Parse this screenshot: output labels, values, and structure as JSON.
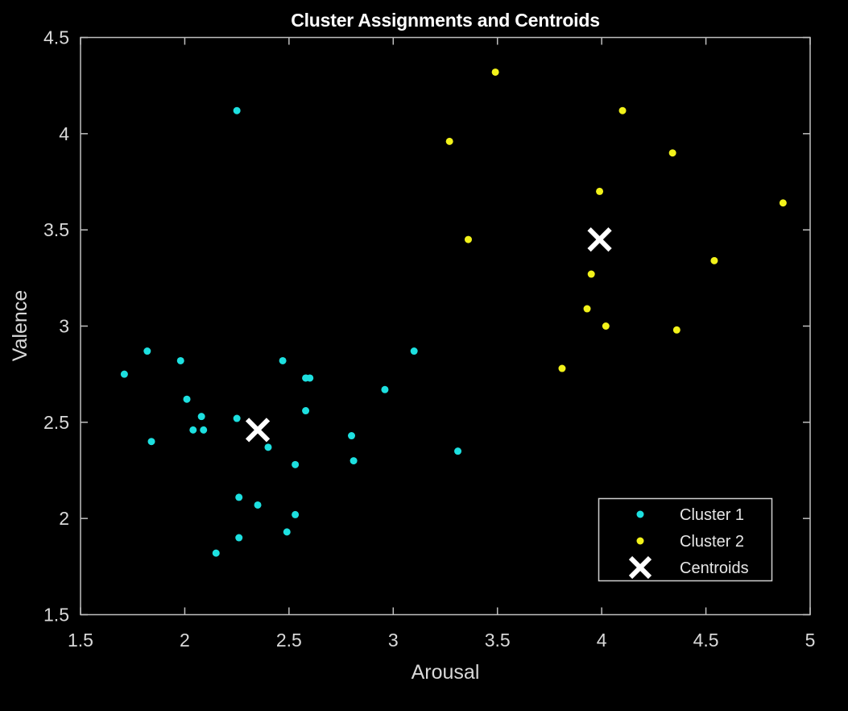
{
  "chart_data": {
    "type": "scatter",
    "title": "Cluster Assignments and Centroids",
    "xlabel": "Arousal",
    "ylabel": "Valence",
    "xlim": [
      1.5,
      5
    ],
    "ylim": [
      1.5,
      4.5
    ],
    "xticks": [
      "1.5",
      "2",
      "2.5",
      "3",
      "3.5",
      "4",
      "4.5",
      "5"
    ],
    "yticks": [
      "1.5",
      "2",
      "2.5",
      "3",
      "3.5",
      "4",
      "4.5"
    ],
    "grid": false,
    "legend_position": "lower right",
    "series": [
      {
        "name": "Cluster 1",
        "color": "#1de0e0",
        "marker": "dot",
        "points": [
          [
            1.71,
            2.75
          ],
          [
            1.82,
            2.87
          ],
          [
            1.84,
            2.4
          ],
          [
            1.98,
            2.82
          ],
          [
            2.01,
            2.62
          ],
          [
            2.08,
            2.53
          ],
          [
            2.04,
            2.46
          ],
          [
            2.09,
            2.46
          ],
          [
            2.25,
            4.12
          ],
          [
            2.25,
            2.52
          ],
          [
            2.26,
            2.11
          ],
          [
            2.26,
            1.9
          ],
          [
            2.15,
            1.82
          ],
          [
            2.35,
            2.07
          ],
          [
            2.4,
            2.37
          ],
          [
            2.47,
            2.82
          ],
          [
            2.49,
            1.93
          ],
          [
            2.53,
            2.02
          ],
          [
            2.53,
            2.28
          ],
          [
            2.58,
            2.73
          ],
          [
            2.6,
            2.73
          ],
          [
            2.58,
            2.56
          ],
          [
            2.8,
            2.43
          ],
          [
            2.81,
            2.3
          ],
          [
            2.96,
            2.67
          ],
          [
            3.1,
            2.87
          ],
          [
            3.31,
            2.35
          ]
        ]
      },
      {
        "name": "Cluster 2",
        "color": "#f2f21a",
        "marker": "dot",
        "points": [
          [
            3.27,
            3.96
          ],
          [
            3.36,
            3.45
          ],
          [
            3.49,
            4.32
          ],
          [
            3.81,
            2.78
          ],
          [
            3.93,
            3.09
          ],
          [
            3.95,
            3.27
          ],
          [
            3.99,
            3.7
          ],
          [
            4.02,
            3.0
          ],
          [
            4.1,
            4.12
          ],
          [
            4.34,
            3.9
          ],
          [
            4.36,
            2.98
          ],
          [
            4.54,
            3.34
          ],
          [
            4.87,
            3.64
          ]
        ]
      },
      {
        "name": "Centroids",
        "color": "#ffffff",
        "marker": "x",
        "points": [
          [
            2.35,
            2.46
          ],
          [
            3.99,
            3.45
          ]
        ]
      }
    ]
  },
  "legend": {
    "items": [
      "Cluster 1",
      "Cluster 2",
      "Centroids"
    ]
  },
  "colors": {
    "background": "#000000",
    "axes": "#bfbfbf",
    "cluster1": "#1de0e0",
    "cluster2": "#f2f21a",
    "centroid": "#ffffff"
  }
}
